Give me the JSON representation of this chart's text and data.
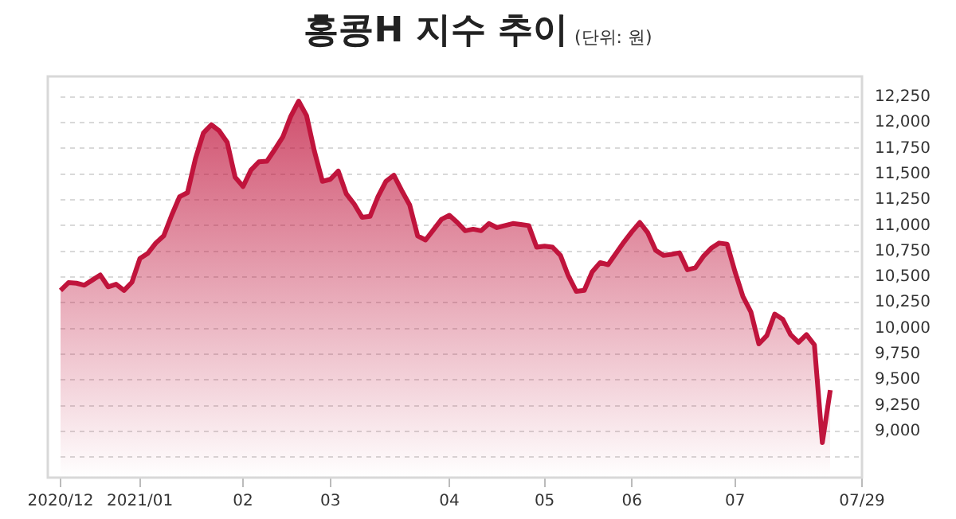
{
  "chart_data": {
    "type": "area",
    "title": "홍콩H 지수 추이",
    "subtitle": "(단위: 원)",
    "categories": [
      "2020/12",
      null,
      null,
      null,
      null,
      null,
      null,
      null,
      null,
      null,
      "2021/01",
      null,
      null,
      null,
      null,
      null,
      null,
      null,
      null,
      null,
      null,
      null,
      null,
      "02",
      null,
      null,
      null,
      null,
      null,
      null,
      null,
      null,
      null,
      null,
      "03",
      null,
      null,
      null,
      null,
      null,
      null,
      null,
      null,
      null,
      null,
      null,
      null,
      null,
      null,
      "04",
      null,
      null,
      null,
      null,
      null,
      null,
      null,
      null,
      null,
      null,
      null,
      "05",
      null,
      null,
      null,
      null,
      null,
      null,
      null,
      null,
      null,
      null,
      "06",
      null,
      null,
      null,
      null,
      null,
      null,
      null,
      null,
      null,
      null,
      null,
      null,
      "07",
      null,
      null,
      null,
      null,
      null,
      null,
      null,
      null,
      null,
      null,
      null,
      null,
      null,
      null,
      null,
      "07/29"
    ],
    "series": [
      {
        "color": "#c0143c",
        "values": [
          10370,
          10445,
          10440,
          10420,
          10470,
          10520,
          10405,
          10430,
          10370,
          10450,
          10680,
          10730,
          10830,
          10900,
          11100,
          11280,
          11320,
          11650,
          11900,
          11980,
          11920,
          11810,
          11470,
          11380,
          11540,
          11620,
          11625,
          11740,
          11860,
          12060,
          12210,
          12070,
          11720,
          11430,
          11450,
          11530,
          11310,
          11210,
          11080,
          11090,
          11280,
          11430,
          11490,
          11340,
          11200,
          10900,
          10860,
          10960,
          11060,
          11100,
          11030,
          10950,
          10965,
          10950,
          11020,
          10980,
          11000,
          11020,
          11010,
          11000,
          10790,
          10800,
          10790,
          10710,
          10510,
          10360,
          10370,
          10550,
          10640,
          10620,
          10730,
          10840,
          10940,
          11030,
          10930,
          10760,
          10710,
          10720,
          10735,
          10570,
          10590,
          10700,
          10780,
          10830,
          10820,
          10550,
          10310,
          10160,
          9850,
          9930,
          10140,
          10090,
          9940,
          9865,
          9940,
          9840,
          8890,
          9400,
          null,
          null,
          null,
          null
        ]
      }
    ],
    "ylim": [
      8550,
      12450
    ],
    "yticks": [
      {
        "value": 8750,
        "label": null
      },
      {
        "value": 9000,
        "label": "9,000"
      },
      {
        "value": 9250,
        "label": "9,250"
      },
      {
        "value": 9500,
        "label": "9,500"
      },
      {
        "value": 9750,
        "label": "9,750"
      },
      {
        "value": 10000,
        "label": "10,000"
      },
      {
        "value": 10250,
        "label": "10,250"
      },
      {
        "value": 10500,
        "label": "10,500"
      },
      {
        "value": 10750,
        "label": "10,750"
      },
      {
        "value": 11000,
        "label": "11,000"
      },
      {
        "value": 11250,
        "label": "11,250"
      },
      {
        "value": 11500,
        "label": "11,500"
      },
      {
        "value": 11750,
        "label": "11,750"
      },
      {
        "value": 12000,
        "label": "12,000"
      },
      {
        "value": 12250,
        "label": "12,250"
      }
    ],
    "grid": "y"
  }
}
